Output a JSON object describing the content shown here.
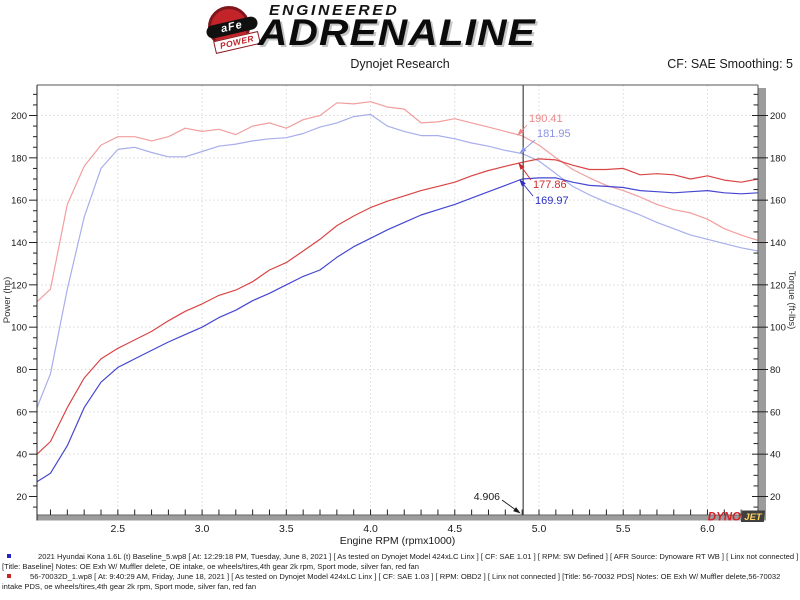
{
  "header": {
    "logo": {
      "line1": "ENGINEERED",
      "line2": "ADRENALINE",
      "ball_text": "aFe",
      "ball_sub": "POWER",
      "brand_red": "#c2242a"
    },
    "title": "Dynojet Research",
    "smoothing": "CF: SAE Smoothing: 5"
  },
  "chart_data": {
    "type": "line",
    "title": "Dynojet Research",
    "xlabel": "Engine RPM (rpmx1000)",
    "ylabel_left": "Power (hp)",
    "ylabel_right": "Torque (ft-lbs)",
    "grid": true,
    "x_range": [
      2.02,
      6.3
    ],
    "x_ticks": [
      2.5,
      3.0,
      3.5,
      4.0,
      4.5,
      5.0,
      5.5,
      6.0
    ],
    "x_minor_step": 0.1,
    "y_ticks": [
      20,
      40,
      60,
      80,
      100,
      120,
      140,
      160,
      180,
      200
    ],
    "y_minor_step": 5,
    "x": [
      2.02,
      2.1,
      2.2,
      2.3,
      2.4,
      2.5,
      2.6,
      2.7,
      2.8,
      2.9,
      3.0,
      3.1,
      3.2,
      3.3,
      3.4,
      3.5,
      3.6,
      3.7,
      3.8,
      3.9,
      4.0,
      4.1,
      4.2,
      4.3,
      4.4,
      4.5,
      4.6,
      4.7,
      4.8,
      4.9,
      5.0,
      5.1,
      5.2,
      5.3,
      5.4,
      5.5,
      5.6,
      5.7,
      5.8,
      5.9,
      6.0,
      6.1,
      6.2,
      6.3
    ],
    "series": [
      {
        "id": "torque-pds",
        "name": "56-70032 PDS Torque (ft-lbs)",
        "color": "#f29e9e",
        "values": [
          112,
          118,
          158,
          176,
          186,
          190,
          190,
          188,
          190,
          194,
          192.5,
          193.5,
          191,
          195,
          196.5,
          194,
          198,
          200,
          206,
          205.5,
          206.5,
          204,
          203,
          196.5,
          197,
          198.5,
          196.5,
          194.5,
          192.5,
          190.4,
          186,
          180,
          174.5,
          170.5,
          167,
          164.5,
          161.5,
          158,
          155.5,
          154,
          151,
          146.5,
          143.5,
          141
        ]
      },
      {
        "id": "torque-baseline",
        "name": "Baseline Torque (ft-lbs)",
        "color": "#a8aeec",
        "values": [
          62,
          78,
          118,
          152,
          175,
          184,
          185,
          182.5,
          180.5,
          180.5,
          183,
          185.5,
          186.5,
          188,
          189,
          189.5,
          191.5,
          194.5,
          196.5,
          199.5,
          200.5,
          195,
          192.5,
          190.5,
          190.5,
          189,
          187,
          185.5,
          183.5,
          182,
          178.5,
          172.5,
          166.5,
          162.5,
          159,
          156,
          153,
          149.5,
          146.5,
          143.5,
          141.5,
          139.5,
          137.5,
          136
        ]
      },
      {
        "id": "power-pds",
        "name": "56-70032 PDS Power (hp)",
        "color": "#d94545",
        "values": [
          40,
          46,
          62,
          76,
          85,
          90,
          94,
          98,
          103,
          107.5,
          111,
          115,
          117.5,
          121.5,
          127,
          130.5,
          136,
          141.5,
          148,
          152.5,
          156.5,
          159.5,
          162,
          164.5,
          166.5,
          168.5,
          171.5,
          174,
          176,
          177.9,
          179.5,
          179,
          176.5,
          174.5,
          174.5,
          175,
          172,
          172.5,
          172,
          170,
          171.5,
          169.5,
          168.5,
          170
        ]
      },
      {
        "id": "power-baseline",
        "name": "Baseline Power (hp)",
        "color": "#4547d0",
        "values": [
          27,
          31,
          44,
          62,
          74,
          81,
          85,
          89,
          93,
          96.5,
          100,
          104.5,
          108,
          112.5,
          116,
          120,
          124,
          127,
          133,
          138,
          142,
          146,
          149.5,
          153,
          155.5,
          158,
          161,
          164,
          167,
          170,
          170.5,
          170.5,
          168.5,
          167,
          166.5,
          166,
          164.5,
          164,
          163.5,
          164,
          164.5,
          163.5,
          163,
          163.5
        ]
      }
    ],
    "marker": {
      "x": 4.906,
      "label": "4.906"
    },
    "callouts": [
      {
        "label": "190.41",
        "value": 190.41,
        "series": "torque-pds",
        "color": "#ee8686"
      },
      {
        "label": "181.95",
        "value": 181.95,
        "series": "torque-baseline",
        "color": "#8894e4"
      },
      {
        "label": "177.86",
        "value": 177.86,
        "series": "power-pds",
        "color": "#cc2b2b"
      },
      {
        "label": "169.97",
        "value": 169.97,
        "series": "power-baseline",
        "color": "#2b2fc4"
      }
    ],
    "watermark": {
      "part1": "DYNO",
      "part2": "JET"
    }
  },
  "footer": {
    "runs": [
      {
        "swatch_color": "#2323c8",
        "line1": "2021 Hyundai Kona 1.6L (t) Baseline_5.wp8 [ At: 12:29:18 PM, Tuesday, June 8, 2021 ] [ As tested on Dynojet Model 424xLC Linx ] [ CF: SAE 1.01 ] [ RPM: SW Defined ] [ AFR Source: Dynoware RT WB ] [ Linx not connected ]",
        "line2": "[Title: Baseline]  Notes: OE Exh W/ Muffler delete, OE intake, oe wheels/tires,4th gear 2k rpm, Sport mode, silver fan, red fan"
      },
      {
        "swatch_color": "#c82323",
        "line1": "56-70032D_1.wp8 [ At: 9:40:29 AM, Friday, June 18, 2021 ] [ As tested on Dynojet Model 424xLC Linx ] [ CF: SAE 1.03 ] [ RPM: OBD2 ] [ Linx not connected ] [Title: 56-70032 PDS]  Notes: OE Exh W/ Muffler delete,56-70032",
        "line2": "intake PDS, oe wheels/tires,4th gear 2k rpm, Sport mode, silver fan, red fan"
      }
    ]
  }
}
